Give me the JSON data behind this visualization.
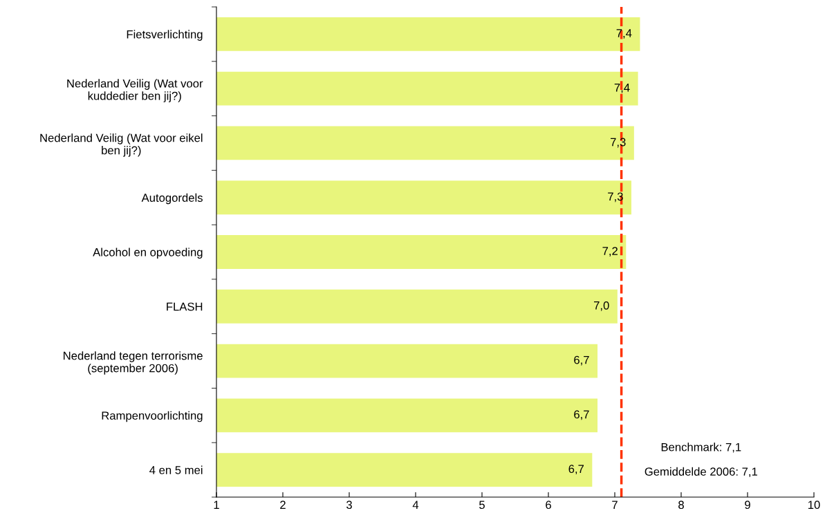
{
  "chart_data": {
    "type": "bar",
    "orientation": "horizontal",
    "categories": [
      "Fietsverlichting",
      "Nederland Veilig (Wat voor\nkuddedier ben jij?)",
      "Nederland Veilig (Wat voor eikel\nben jij?)",
      "Autogordels",
      "Alcohol en opvoeding",
      "FLASH",
      "Nederland tegen terrorisme\n(september 2006)",
      "Rampenvoorlichting",
      "4 en 5 mei"
    ],
    "values": [
      7.38,
      7.35,
      7.29,
      7.25,
      7.17,
      7.04,
      6.74,
      6.74,
      6.66
    ],
    "value_labels": [
      "7,4",
      "7,4",
      "7,3",
      "7,3",
      "7,2",
      "7,0",
      "6,7",
      "6,7",
      "6,7"
    ],
    "color": "#e8f57c",
    "xlim": [
      1,
      10
    ],
    "xticks": [
      1,
      2,
      3,
      4,
      5,
      6,
      7,
      8,
      9,
      10
    ],
    "ref_lines": [
      {
        "axis": "x",
        "value": 7.1,
        "color": "#ff3300",
        "line_style": "dashed"
      }
    ],
    "annotations": [
      "Benchmark: 7,1",
      "Gemiddelde 2006: 7,1"
    ],
    "grid": false,
    "legend": false
  }
}
